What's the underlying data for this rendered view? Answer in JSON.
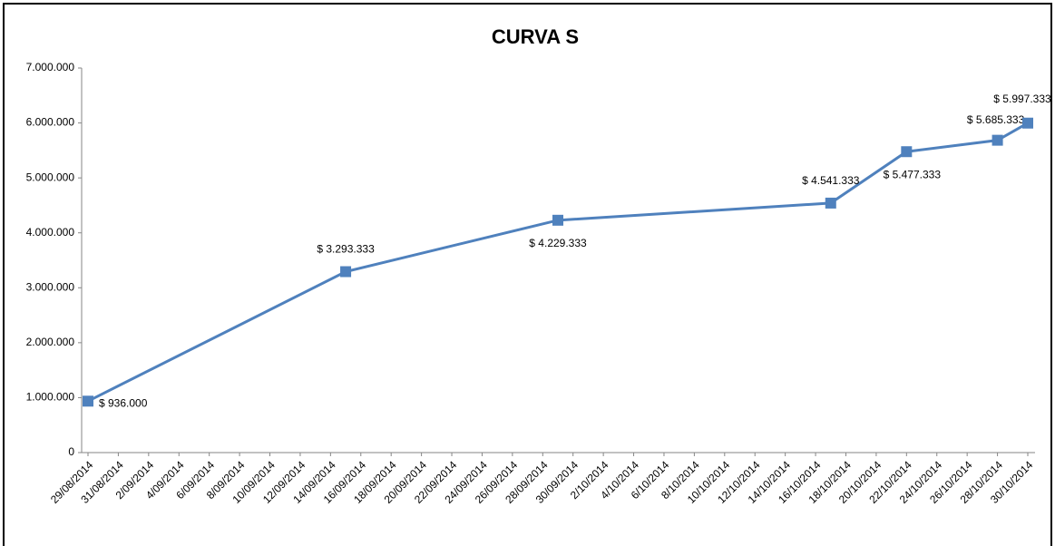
{
  "chart_data": {
    "type": "line",
    "title": "CURVA S",
    "x": [
      "29/08/2014",
      "15/09/2014",
      "29/09/2014",
      "17/10/2014",
      "22/10/2014",
      "28/10/2014",
      "30/10/2014"
    ],
    "series": [
      {
        "name": "Curva S",
        "color": "#4f81bd",
        "values": [
          936000,
          3293333,
          4229333,
          4541333,
          5477333,
          5685333,
          5997333
        ],
        "value_labels": [
          "$ 936.000",
          "$ 3.293.333",
          "$ 4.229.333",
          "$ 4.541.333",
          "$ 5.477.333",
          "$ 5.685.333",
          "$ 5.997.333"
        ]
      }
    ],
    "xlim": [
      "29/08/2014",
      "30/10/2014"
    ],
    "xticks": [
      "29/08/2014",
      "31/08/2014",
      "2/09/2014",
      "4/09/2014",
      "6/09/2014",
      "8/09/2014",
      "10/09/2014",
      "12/09/2014",
      "14/09/2014",
      "16/09/2014",
      "18/09/2014",
      "20/09/2014",
      "22/09/2014",
      "24/09/2014",
      "26/09/2014",
      "28/09/2014",
      "30/09/2014",
      "2/10/2014",
      "4/10/2014",
      "6/10/2014",
      "8/10/2014",
      "10/10/2014",
      "12/10/2014",
      "14/10/2014",
      "16/10/2014",
      "18/10/2014",
      "20/10/2014",
      "22/10/2014",
      "24/10/2014",
      "26/10/2014",
      "28/10/2014",
      "30/10/2014"
    ],
    "ylim": [
      0,
      7000000
    ],
    "yticks": [
      0,
      {
        "value": 1000000,
        "label": "1.000.000"
      },
      {
        "value": 2000000,
        "label": "2.000.000"
      },
      {
        "value": 3000000,
        "label": "3.000.000"
      },
      {
        "value": 4000000,
        "label": "4.000.000"
      },
      {
        "value": 5000000,
        "label": "5.000.000"
      },
      {
        "value": 6000000,
        "label": "6.000.000"
      },
      {
        "value": 7000000,
        "label": "7.000.000"
      }
    ]
  }
}
